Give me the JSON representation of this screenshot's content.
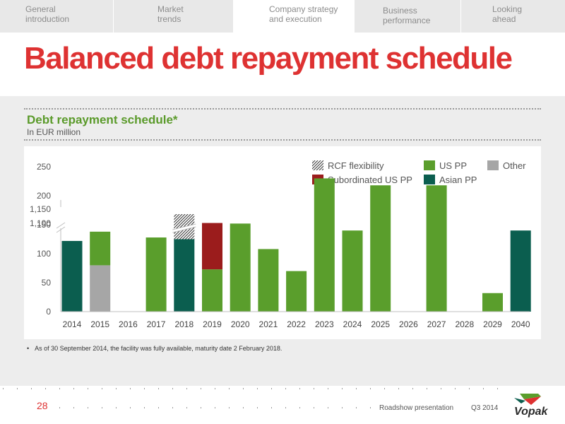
{
  "nav": {
    "tabs": [
      {
        "label": "General\nintroduction",
        "active": false
      },
      {
        "label": "Market\ntrends",
        "active": false
      },
      {
        "label": "Company strategy\nand execution",
        "active": true
      },
      {
        "label": "Business\nperformance",
        "active": false
      },
      {
        "label": "Looking\nahead",
        "active": false
      }
    ]
  },
  "page": {
    "title": "Balanced debt repayment schedule",
    "subtitle": "Debt repayment schedule*",
    "unit_label": "In EUR million",
    "footnote": "As of 30 September 2014, the facility was fully available, maturity date 2 February 2018.",
    "footnote_bullet": "•"
  },
  "footer": {
    "page_number": "28",
    "presentation": "Roadshow presentation",
    "period": "Q3 2014",
    "logo_text": "Vopak"
  },
  "colors": {
    "title_red": "#de3232",
    "us_pp": "#5a9e2c",
    "asian_pp": "#0b5e4f",
    "subordinated_us_pp": "#9b1c1c",
    "other": "#a6a6a6"
  },
  "chart_data": {
    "type": "bar",
    "stacked": true,
    "categories": [
      "2014",
      "2015",
      "2016",
      "2017",
      "2018",
      "2019",
      "2020",
      "2021",
      "2022",
      "2023",
      "2024",
      "2025",
      "2026",
      "2027",
      "2028",
      "2029",
      "2040"
    ],
    "series": [
      {
        "name": "Asian PP",
        "color": "#0b5e4f",
        "values": [
          122,
          0,
          0,
          0,
          125,
          0,
          0,
          0,
          0,
          0,
          0,
          0,
          0,
          0,
          0,
          0,
          140
        ]
      },
      {
        "name": "Other",
        "color": "#a6a6a6",
        "values": [
          0,
          80,
          0,
          0,
          0,
          0,
          0,
          0,
          0,
          0,
          0,
          0,
          0,
          0,
          0,
          0,
          0
        ]
      },
      {
        "name": "US PP",
        "color": "#5a9e2c",
        "values": [
          0,
          58,
          0,
          128,
          0,
          73,
          152,
          108,
          70,
          230,
          140,
          218,
          0,
          218,
          0,
          32,
          0
        ]
      },
      {
        "name": "Subordinated US PP",
        "color": "#9b1c1c",
        "values": [
          0,
          0,
          0,
          0,
          0,
          80,
          0,
          0,
          0,
          0,
          0,
          0,
          0,
          0,
          0,
          0,
          0
        ]
      },
      {
        "name": "RCF flexibility",
        "pattern": "hatched",
        "values": [
          0,
          0,
          0,
          0,
          1000,
          0,
          0,
          0,
          0,
          0,
          0,
          0,
          0,
          0,
          0,
          0,
          0
        ]
      }
    ],
    "y_ticks": [
      "0",
      "50",
      "100",
      "150",
      "200",
      "250",
      "1,100",
      "1,150"
    ],
    "axis_break": "between 250 and 1,100",
    "legend": [
      {
        "name": "RCF flexibility",
        "pattern": "hatched"
      },
      {
        "name": "US PP",
        "color": "#5a9e2c"
      },
      {
        "name": "Other",
        "color": "#a6a6a6"
      },
      {
        "name": "Subordinated US PP",
        "color": "#9b1c1c"
      },
      {
        "name": "Asian PP",
        "color": "#0b5e4f"
      }
    ],
    "legend_position": "top-right",
    "grid": false
  }
}
